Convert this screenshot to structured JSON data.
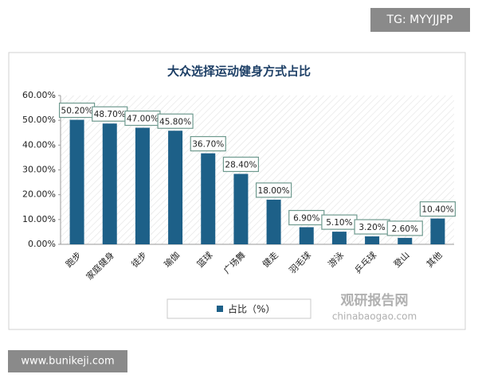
{
  "header": {
    "tag": "TG: MYYJJPP"
  },
  "watermark": {
    "brand": "观研报告网",
    "site": "chinabaogao.com"
  },
  "footer": {
    "site": "www.bunikeji.com"
  },
  "chart_data": {
    "type": "bar",
    "title": "大众选择运动健身方式占比",
    "categories": [
      "跑步",
      "家庭健身",
      "徒步",
      "瑜伽",
      "篮球",
      "广场舞",
      "健走",
      "羽毛球",
      "游泳",
      "乒乓球",
      "登山",
      "其他"
    ],
    "series": [
      {
        "name": "占比（%）",
        "color": "#1d6088",
        "values": [
          50.2,
          48.7,
          47.0,
          45.8,
          36.7,
          28.4,
          18.0,
          6.9,
          5.1,
          3.2,
          2.6,
          10.4
        ],
        "value_labels": [
          "50.20%",
          "48.70%",
          "47.00%",
          "45.80%",
          "36.70%",
          "28.40%",
          "18.00%",
          "6.90%",
          "5.10%",
          "3.20%",
          "2.60%",
          "10.40%"
        ]
      }
    ],
    "ylim": [
      0,
      60
    ],
    "yticks": [
      {
        "value": 0,
        "label": "0.00%"
      },
      {
        "value": 10,
        "label": "10.00%"
      },
      {
        "value": 20,
        "label": "20.00%"
      },
      {
        "value": 30,
        "label": "30.00%"
      },
      {
        "value": 40,
        "label": "40.00%"
      },
      {
        "value": 50,
        "label": "50.00%"
      },
      {
        "value": 60,
        "label": "60.00%"
      }
    ],
    "legend": "bottom"
  }
}
